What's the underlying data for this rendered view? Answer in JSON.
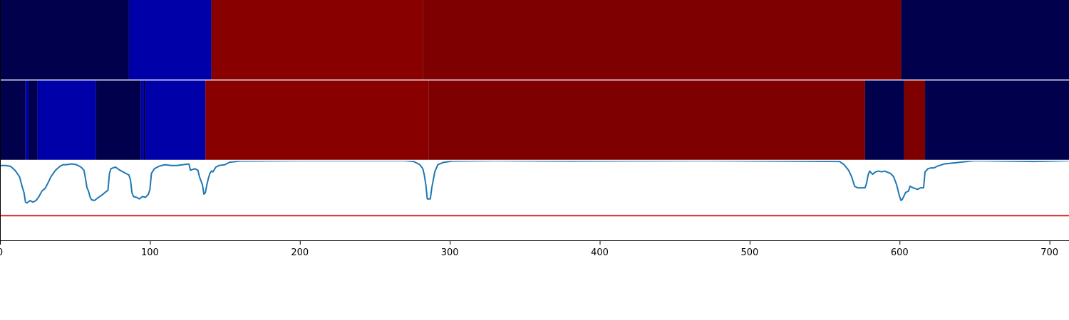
{
  "chart_data": {
    "type": "heatmap",
    "xlim": [
      0,
      713
    ],
    "x_ticks": [
      {
        "value": 0,
        "label": "0"
      },
      {
        "value": 100,
        "label": "100"
      },
      {
        "value": 200,
        "label": "200"
      },
      {
        "value": 300,
        "label": "300"
      },
      {
        "value": 400,
        "label": "400"
      },
      {
        "value": 500,
        "label": "500"
      },
      {
        "value": 600,
        "label": "600"
      },
      {
        "value": 700,
        "label": "700"
      }
    ],
    "segment_rows": [
      {
        "segments": [
          {
            "start": 0,
            "end": 86,
            "color": "#00004c"
          },
          {
            "start": 86,
            "end": 141,
            "color": "#0000a8"
          },
          {
            "start": 141,
            "end": 282,
            "color": "#880000"
          },
          {
            "start": 282,
            "end": 601,
            "color": "#7f0000"
          },
          {
            "start": 601,
            "end": 713,
            "color": "#00004c"
          }
        ]
      },
      {
        "segments": [
          {
            "start": 0,
            "end": 17,
            "color": "#00004c"
          },
          {
            "start": 17,
            "end": 19,
            "color": "#0000a8"
          },
          {
            "start": 19,
            "end": 25,
            "color": "#00004c"
          },
          {
            "start": 25,
            "end": 64,
            "color": "#0000a8"
          },
          {
            "start": 64,
            "end": 94,
            "color": "#00004c"
          },
          {
            "start": 94,
            "end": 96,
            "color": "#0000a8"
          },
          {
            "start": 96,
            "end": 97,
            "color": "#00004c"
          },
          {
            "start": 97,
            "end": 137,
            "color": "#0000a8"
          },
          {
            "start": 137,
            "end": 286,
            "color": "#880000"
          },
          {
            "start": 286,
            "end": 577,
            "color": "#7f0000"
          },
          {
            "start": 577,
            "end": 603,
            "color": "#00004c"
          },
          {
            "start": 603,
            "end": 617,
            "color": "#7f0000"
          },
          {
            "start": 617,
            "end": 713,
            "color": "#00004c"
          }
        ]
      }
    ],
    "line_series": {
      "color": "#1f77b4",
      "ylim": [
        0,
        1
      ],
      "points": [
        [
          0,
          0.94
        ],
        [
          4,
          0.94
        ],
        [
          7,
          0.93
        ],
        [
          10,
          0.88
        ],
        [
          13,
          0.8
        ],
        [
          15,
          0.66
        ],
        [
          16,
          0.6
        ],
        [
          17,
          0.48
        ],
        [
          18,
          0.47
        ],
        [
          20,
          0.5
        ],
        [
          22,
          0.48
        ],
        [
          24,
          0.5
        ],
        [
          26,
          0.55
        ],
        [
          28,
          0.62
        ],
        [
          30,
          0.65
        ],
        [
          32,
          0.72
        ],
        [
          34,
          0.8
        ],
        [
          37,
          0.88
        ],
        [
          40,
          0.93
        ],
        [
          42,
          0.95
        ],
        [
          44,
          0.95
        ],
        [
          48,
          0.96
        ],
        [
          51,
          0.95
        ],
        [
          54,
          0.92
        ],
        [
          56,
          0.88
        ],
        [
          57,
          0.78
        ],
        [
          58,
          0.66
        ],
        [
          59,
          0.62
        ],
        [
          60,
          0.55
        ],
        [
          61,
          0.51
        ],
        [
          63,
          0.5
        ],
        [
          65,
          0.53
        ],
        [
          68,
          0.57
        ],
        [
          70,
          0.6
        ],
        [
          72,
          0.63
        ],
        [
          73,
          0.84
        ],
        [
          74,
          0.9
        ],
        [
          77,
          0.92
        ],
        [
          80,
          0.88
        ],
        [
          83,
          0.85
        ],
        [
          86,
          0.82
        ],
        [
          87,
          0.76
        ],
        [
          88,
          0.6
        ],
        [
          89,
          0.55
        ],
        [
          91,
          0.54
        ],
        [
          93,
          0.52
        ],
        [
          95,
          0.55
        ],
        [
          97,
          0.54
        ],
        [
          99,
          0.58
        ],
        [
          100,
          0.64
        ],
        [
          101,
          0.84
        ],
        [
          103,
          0.9
        ],
        [
          106,
          0.93
        ],
        [
          110,
          0.95
        ],
        [
          114,
          0.94
        ],
        [
          118,
          0.94
        ],
        [
          122,
          0.95
        ],
        [
          126,
          0.96
        ],
        [
          127,
          0.88
        ],
        [
          130,
          0.9
        ],
        [
          132,
          0.88
        ],
        [
          133,
          0.8
        ],
        [
          135,
          0.7
        ],
        [
          136,
          0.58
        ],
        [
          137,
          0.6
        ],
        [
          138,
          0.7
        ],
        [
          139,
          0.78
        ],
        [
          140,
          0.84
        ],
        [
          141,
          0.87
        ],
        [
          142,
          0.86
        ],
        [
          144,
          0.92
        ],
        [
          146,
          0.94
        ],
        [
          150,
          0.95
        ],
        [
          153,
          0.98
        ],
        [
          160,
          0.995
        ],
        [
          200,
          1.0
        ],
        [
          270,
          1.0
        ],
        [
          276,
          0.99
        ],
        [
          280,
          0.95
        ],
        [
          282,
          0.9
        ],
        [
          283,
          0.82
        ],
        [
          284,
          0.7
        ],
        [
          285,
          0.52
        ],
        [
          287,
          0.52
        ],
        [
          288,
          0.66
        ],
        [
          289,
          0.76
        ],
        [
          290,
          0.86
        ],
        [
          292,
          0.95
        ],
        [
          296,
          0.98
        ],
        [
          302,
          0.995
        ],
        [
          330,
          1.0
        ],
        [
          380,
          0.995
        ],
        [
          470,
          1.0
        ],
        [
          560,
          0.99
        ],
        [
          563,
          0.95
        ],
        [
          566,
          0.88
        ],
        [
          567,
          0.84
        ],
        [
          568,
          0.8
        ],
        [
          569,
          0.74
        ],
        [
          570,
          0.68
        ],
        [
          572,
          0.66
        ],
        [
          575,
          0.66
        ],
        [
          577,
          0.66
        ],
        [
          578,
          0.72
        ],
        [
          579,
          0.82
        ],
        [
          580,
          0.87
        ],
        [
          582,
          0.83
        ],
        [
          584,
          0.86
        ],
        [
          586,
          0.87
        ],
        [
          588,
          0.86
        ],
        [
          590,
          0.87
        ],
        [
          594,
          0.84
        ],
        [
          596,
          0.8
        ],
        [
          598,
          0.7
        ],
        [
          600,
          0.55
        ],
        [
          601,
          0.5
        ],
        [
          602,
          0.52
        ],
        [
          604,
          0.6
        ],
        [
          606,
          0.62
        ],
        [
          607,
          0.68
        ],
        [
          609,
          0.66
        ],
        [
          612,
          0.64
        ],
        [
          614,
          0.66
        ],
        [
          616,
          0.66
        ],
        [
          617,
          0.86
        ],
        [
          619,
          0.9
        ],
        [
          621,
          0.91
        ],
        [
          623,
          0.91
        ],
        [
          625,
          0.93
        ],
        [
          630,
          0.96
        ],
        [
          640,
          0.98
        ],
        [
          650,
          1.0
        ],
        [
          690,
          0.99
        ],
        [
          713,
          1.0
        ]
      ]
    },
    "threshold": {
      "value": 0.31,
      "color": "#d62728"
    }
  }
}
